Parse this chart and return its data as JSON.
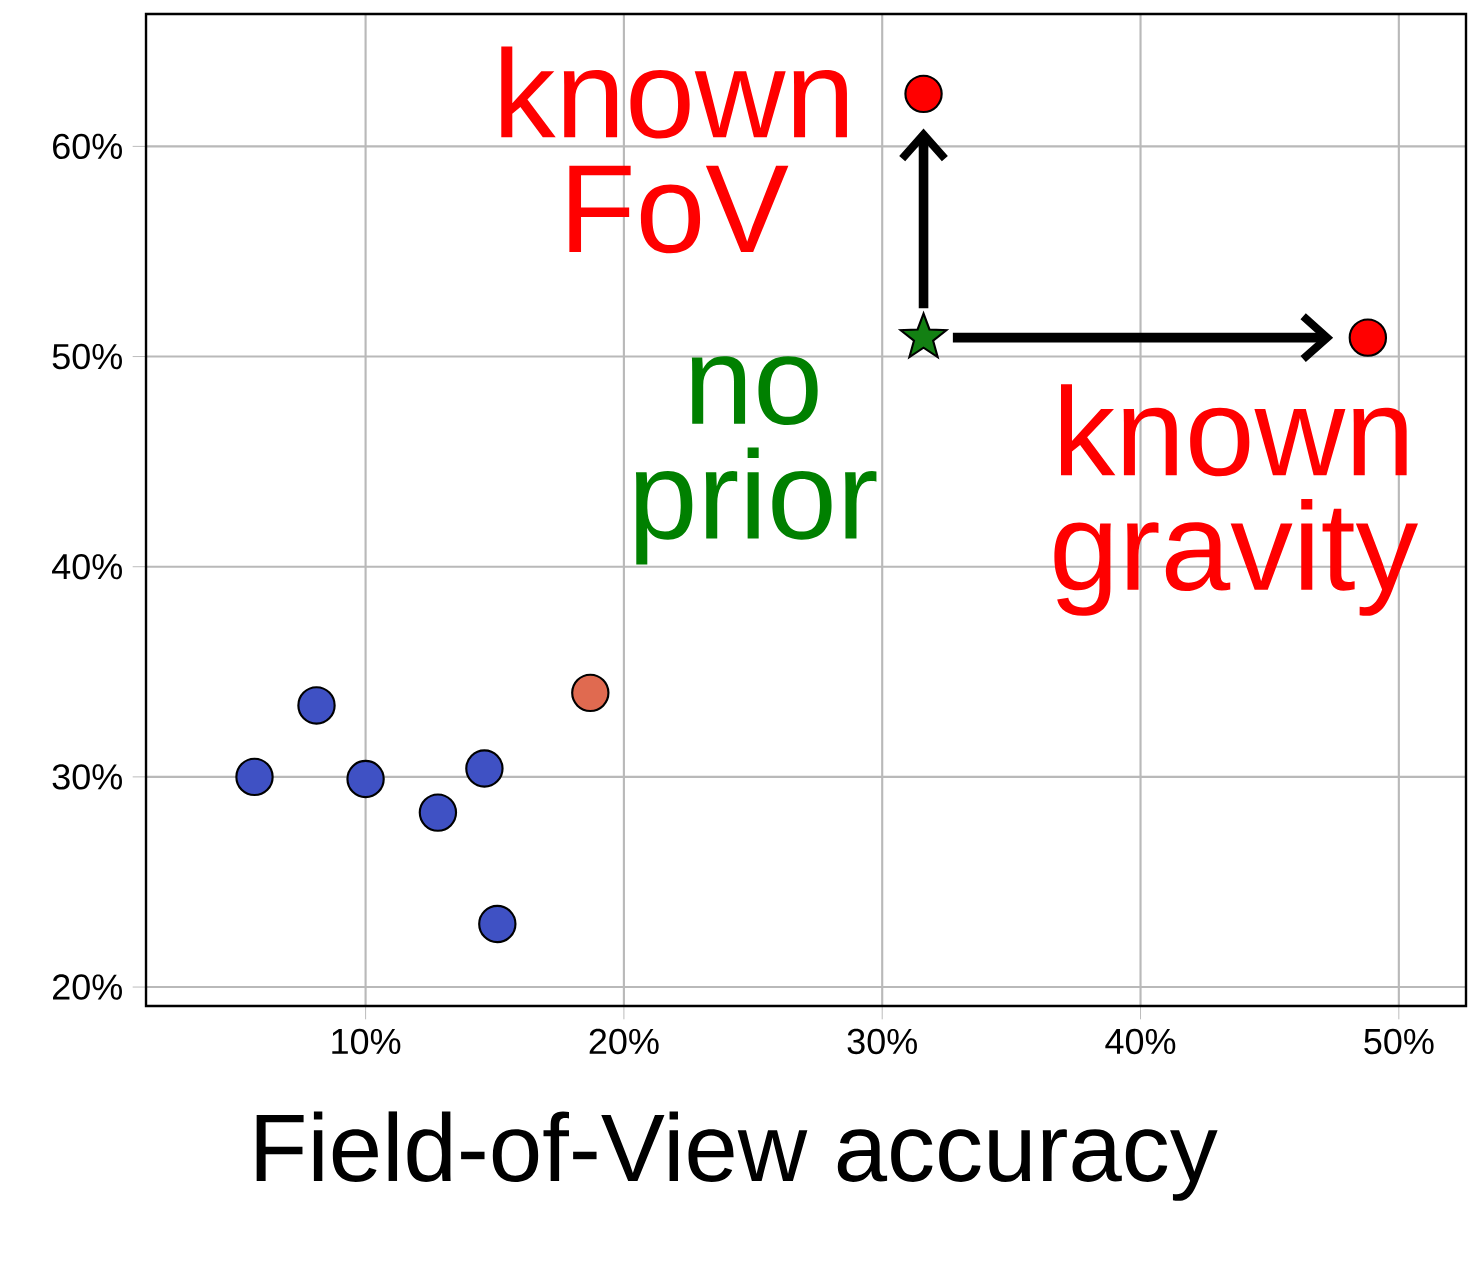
{
  "chart_data": {
    "type": "scatter",
    "xlabel": "Field-of-View accuracy",
    "xlim": [
      1.5,
      52.6
    ],
    "ylim": [
      19.1,
      66.3
    ],
    "xticks": [
      {
        "value": 10,
        "label": "10%"
      },
      {
        "value": 20,
        "label": "20%"
      },
      {
        "value": 30,
        "label": "30%"
      },
      {
        "value": 40,
        "label": "40%"
      },
      {
        "value": 50,
        "label": "50%"
      }
    ],
    "yticks": [
      {
        "value": 20,
        "label": "20%"
      },
      {
        "value": 30,
        "label": "30%"
      },
      {
        "value": 40,
        "label": "40%"
      },
      {
        "value": 50,
        "label": "50%"
      },
      {
        "value": 60,
        "label": "60%"
      }
    ],
    "grid": true,
    "series": [
      {
        "marker": "circle",
        "color": "#3f51c4",
        "x": [
          5.7,
          8.1,
          10.0,
          12.8,
          14.6,
          15.1
        ],
        "values": [
          30.0,
          33.4,
          29.9,
          28.3,
          30.4,
          23.0
        ]
      },
      {
        "marker": "circle",
        "color": "#e06a50",
        "x": [
          18.7
        ],
        "values": [
          34.0
        ]
      },
      {
        "marker": "star",
        "color": "#138013",
        "x": [
          31.6
        ],
        "values": [
          50.9
        ]
      },
      {
        "marker": "circle",
        "color": "#ff0000",
        "x": [
          31.6,
          48.8
        ],
        "values": [
          62.5,
          50.9
        ]
      }
    ],
    "annotations": [
      "known FoV",
      "no prior",
      "known gravity"
    ]
  }
}
